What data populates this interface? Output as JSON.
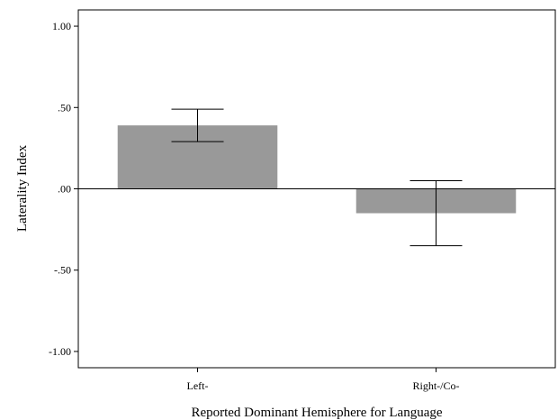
{
  "chart_data": {
    "type": "bar",
    "title": "",
    "xlabel": "Reported Dominant Hemisphere for Language",
    "ylabel": "Laterality Index",
    "categories": [
      "Left-",
      "Right-/Co-"
    ],
    "values": [
      0.39,
      -0.15
    ],
    "error_bars": [
      {
        "low": 0.29,
        "high": 0.49
      },
      {
        "low": -0.35,
        "high": 0.05
      }
    ],
    "ylim": [
      -1.1,
      1.1
    ],
    "yticks": [
      1.0,
      0.5,
      0.0,
      -0.5,
      -1.0
    ],
    "ytick_labels": [
      "1.00",
      ".50",
      ".00",
      "-.50",
      "-1.00"
    ],
    "grid": false,
    "legend": "none",
    "bar_color": "#999999",
    "zero_line": true
  }
}
